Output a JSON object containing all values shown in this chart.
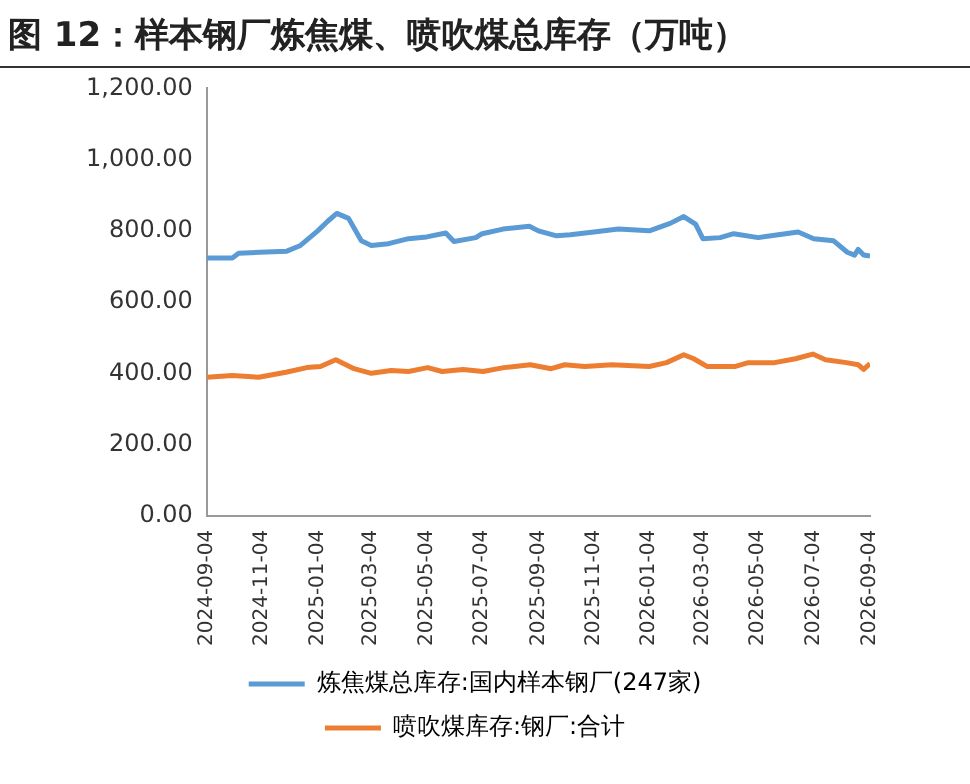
{
  "chart_data": {
    "type": "line",
    "title": "图 12：样本钢厂炼焦煤、喷吹煤总库存（万吨）",
    "xlim": [
      "2024-09-04",
      "2026-09-04"
    ],
    "xticks": [
      "2024-09-04",
      "2024-11-04",
      "2025-01-04",
      "2025-03-04",
      "2025-05-04",
      "2025-07-04",
      "2025-09-04",
      "2025-11-04",
      "2026-01-04",
      "2026-03-04",
      "2026-05-04",
      "2026-07-04",
      "2026-09-04"
    ],
    "ylim": [
      0,
      1200
    ],
    "yticks": [
      {
        "value": 0,
        "label": "0.00"
      },
      {
        "value": 200,
        "label": "200.00"
      },
      {
        "value": 400,
        "label": "400.00"
      },
      {
        "value": 600,
        "label": "600.00"
      },
      {
        "value": 800,
        "label": "800.00"
      },
      {
        "value": 1000,
        "label": "1,000.00"
      },
      {
        "value": 1200,
        "label": "1,200.00"
      }
    ],
    "grid": false,
    "legend": "bottom",
    "marker": "none",
    "line_style": "solid",
    "series": [
      {
        "name": "炼焦煤总库存:国内样本钢厂(247家)",
        "color": "#5b9bd5",
        "x": [
          "2024-09-04",
          "2024-10-02",
          "2024-10-09",
          "2024-11-01",
          "2024-12-01",
          "2024-12-16",
          "2025-01-04",
          "2025-01-15",
          "2025-01-25",
          "2025-02-07",
          "2025-02-21",
          "2025-03-04",
          "2025-03-23",
          "2025-04-14",
          "2025-05-04",
          "2025-05-25",
          "2025-06-03",
          "2025-06-27",
          "2025-07-04",
          "2025-07-27",
          "2025-08-25",
          "2025-09-04",
          "2025-09-24",
          "2025-10-09",
          "2025-11-04",
          "2025-12-01",
          "2026-01-04",
          "2026-01-27",
          "2026-02-11",
          "2026-02-24",
          "2026-03-04",
          "2026-03-23",
          "2026-04-07",
          "2026-05-04",
          "2026-05-26",
          "2026-06-17",
          "2026-07-04",
          "2026-07-26",
          "2026-08-10",
          "2026-08-18",
          "2026-08-22",
          "2026-08-28",
          "2026-09-04"
        ],
        "values": [
          724,
          724,
          737,
          740,
          743,
          759,
          800,
          827,
          849,
          835,
          772,
          759,
          764,
          778,
          783,
          794,
          770,
          781,
          792,
          805,
          813,
          800,
          786,
          789,
          797,
          805,
          800,
          821,
          840,
          819,
          778,
          781,
          792,
          781,
          789,
          797,
          778,
          772,
          740,
          732,
          748,
          732,
          729
        ]
      },
      {
        "name": "喷吹煤库存:钢厂:合计",
        "color": "#ed7d31",
        "x": [
          "2024-09-04",
          "2024-10-02",
          "2024-10-31",
          "2024-11-30",
          "2024-12-23",
          "2025-01-07",
          "2025-01-24",
          "2025-02-13",
          "2025-03-04",
          "2025-03-26",
          "2025-04-14",
          "2025-05-05",
          "2025-05-21",
          "2025-06-13",
          "2025-07-05",
          "2025-07-28",
          "2025-08-26",
          "2025-09-18",
          "2025-10-03",
          "2025-10-25",
          "2025-11-24",
          "2026-01-04",
          "2026-01-23",
          "2026-02-11",
          "2026-02-22",
          "2026-03-09",
          "2026-04-08",
          "2026-04-23",
          "2026-05-22",
          "2026-06-14",
          "2026-07-03",
          "2026-07-17",
          "2026-08-09",
          "2026-08-22",
          "2026-08-28",
          "2026-09-04"
        ],
        "values": [
          389,
          394,
          389,
          403,
          416,
          419,
          438,
          413,
          400,
          408,
          405,
          416,
          405,
          411,
          405,
          416,
          424,
          413,
          424,
          419,
          424,
          419,
          430,
          452,
          441,
          419,
          419,
          430,
          430,
          441,
          454,
          438,
          430,
          424,
          411,
          427
        ]
      }
    ]
  }
}
